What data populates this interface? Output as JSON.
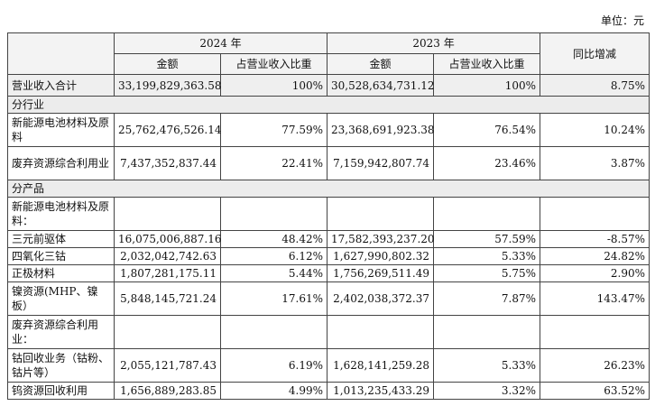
{
  "unit_label": "单位：元",
  "header": {
    "year_2024": "2024 年",
    "year_2023": "2023 年",
    "amount": "金额",
    "share": "占营业收入比重",
    "yoy": "同比增减"
  },
  "total": {
    "label": "营业收入合计",
    "amount_2024": "33,199,829,363.58",
    "share_2024": "100%",
    "amount_2023": "30,528,634,731.12",
    "share_2023": "100%",
    "yoy": "8.75%"
  },
  "section_industry": "分行业",
  "industry_rows": [
    {
      "label": "新能源电池材料及原料",
      "amount_2024": "25,762,476,526.14",
      "share_2024": "77.59%",
      "amount_2023": "23,368,691,923.38",
      "share_2023": "76.54%",
      "yoy": "10.24%"
    },
    {
      "label": "废弃资源综合利用业",
      "amount_2024": "7,437,352,837.44",
      "share_2024": "22.41%",
      "amount_2023": "7,159,942,807.74",
      "share_2023": "23.46%",
      "yoy": "3.87%"
    }
  ],
  "section_product": "分产品",
  "product_group_1": "新能源电池材料及原料：",
  "product_rows_1": [
    {
      "label": "三元前驱体",
      "amount_2024": "16,075,006,887.16",
      "share_2024": "48.42%",
      "amount_2023": "17,582,393,237.20",
      "share_2023": "57.59%",
      "yoy": "-8.57%"
    },
    {
      "label": "四氧化三钴",
      "amount_2024": "2,032,042,742.63",
      "share_2024": "6.12%",
      "amount_2023": "1,627,990,802.32",
      "share_2023": "5.33%",
      "yoy": "24.82%"
    },
    {
      "label": "正极材料",
      "amount_2024": "1,807,281,175.11",
      "share_2024": "5.44%",
      "amount_2023": "1,756,269,511.49",
      "share_2023": "5.75%",
      "yoy": "2.90%"
    },
    {
      "label": "镍资源(MHP、镍板）",
      "amount_2024": "5,848,145,721.24",
      "share_2024": "17.61%",
      "amount_2023": "2,402,038,372.37",
      "share_2023": "7.87%",
      "yoy": "143.47%"
    }
  ],
  "product_group_2": "废弃资源综合利用业：",
  "product_rows_2": [
    {
      "label": "钴回收业务（钴粉、钴片等）",
      "amount_2024": "2,055,121,787.43",
      "share_2024": "6.19%",
      "amount_2023": "1,628,141,259.28",
      "share_2023": "5.33%",
      "yoy": "26.23%"
    },
    {
      "label": "钨资源回收利用",
      "amount_2024": "1,656,889,283.85",
      "share_2024": "4.99%",
      "amount_2023": "1,013,235,433.29",
      "share_2023": "3.32%",
      "yoy": "63.52%"
    }
  ]
}
